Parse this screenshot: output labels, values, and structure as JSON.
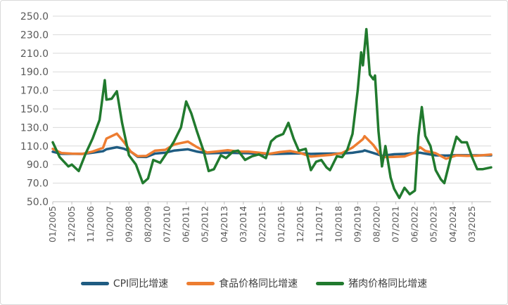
{
  "chart_data": {
    "type": "line",
    "title": "",
    "xlabel": "",
    "ylabel": "",
    "ylim": [
      50,
      250
    ],
    "y_ticks": [
      "50.0",
      "70.0",
      "90.0",
      "110.0",
      "130.0",
      "150.0",
      "170.0",
      "190.0",
      "210.0",
      "230.0",
      "250.0"
    ],
    "x_range": [
      "2005-01",
      "2026-02"
    ],
    "x_tick_labels": [
      "01/2005",
      "12/2005",
      "11/2006",
      "10/2007",
      "09/2008",
      "08/2009",
      "07/2010",
      "06/2011",
      "05/2012",
      "04/2013",
      "03/2014",
      "02/2015",
      "01/2016",
      "12/2016",
      "11/2017",
      "10/2018",
      "09/2019",
      "08/2020",
      "07/2021",
      "06/2022",
      "05/2023",
      "04/2024",
      "03/2025"
    ],
    "grid": "horizontal",
    "legend_position": "bottom",
    "series": [
      {
        "name": "CPI同比增速",
        "color": "#1f5c82",
        "points": [
          [
            "2005-01",
            103.9
          ],
          [
            "2005-06",
            101.6
          ],
          [
            "2005-12",
            101.6
          ],
          [
            "2006-06",
            101.5
          ],
          [
            "2006-12",
            102.8
          ],
          [
            "2007-06",
            104.4
          ],
          [
            "2007-08",
            106.5
          ],
          [
            "2008-02",
            108.7
          ],
          [
            "2008-06",
            107.1
          ],
          [
            "2008-10",
            104.0
          ],
          [
            "2009-02",
            98.4
          ],
          [
            "2009-07",
            98.2
          ],
          [
            "2009-12",
            101.9
          ],
          [
            "2010-06",
            102.9
          ],
          [
            "2010-11",
            105.1
          ],
          [
            "2011-07",
            106.5
          ],
          [
            "2011-12",
            104.1
          ],
          [
            "2012-06",
            102.2
          ],
          [
            "2012-12",
            102.5
          ],
          [
            "2013-06",
            102.7
          ],
          [
            "2013-12",
            102.5
          ],
          [
            "2014-06",
            102.3
          ],
          [
            "2014-12",
            101.5
          ],
          [
            "2015-06",
            101.4
          ],
          [
            "2015-12",
            101.6
          ],
          [
            "2016-06",
            101.9
          ],
          [
            "2016-12",
            102.1
          ],
          [
            "2017-06",
            101.5
          ],
          [
            "2017-12",
            101.8
          ],
          [
            "2018-06",
            101.9
          ],
          [
            "2018-12",
            101.9
          ],
          [
            "2019-06",
            102.7
          ],
          [
            "2019-12",
            104.5
          ],
          [
            "2020-01",
            105.4
          ],
          [
            "2020-06",
            102.5
          ],
          [
            "2020-11",
            99.5
          ],
          [
            "2021-06",
            101.1
          ],
          [
            "2021-12",
            101.5
          ],
          [
            "2022-06",
            102.5
          ],
          [
            "2022-09",
            102.8
          ],
          [
            "2022-12",
            101.8
          ],
          [
            "2023-06",
            100.0
          ],
          [
            "2023-12",
            99.7
          ],
          [
            "2024-06",
            100.2
          ],
          [
            "2024-12",
            100.1
          ],
          [
            "2025-06",
            100.0
          ],
          [
            "2026-02",
            100.0
          ]
        ]
      },
      {
        "name": "食品价格同比增速",
        "color": "#ed7d31",
        "points": [
          [
            "2005-01",
            107.0
          ],
          [
            "2005-06",
            102.5
          ],
          [
            "2005-12",
            101.8
          ],
          [
            "2006-06",
            101.5
          ],
          [
            "2006-12",
            104.0
          ],
          [
            "2007-06",
            108.0
          ],
          [
            "2007-08",
            118.0
          ],
          [
            "2008-02",
            123.3
          ],
          [
            "2008-06",
            114.4
          ],
          [
            "2008-10",
            104.0
          ],
          [
            "2009-02",
            99.0
          ],
          [
            "2009-07",
            99.3
          ],
          [
            "2009-12",
            105.0
          ],
          [
            "2010-06",
            106.0
          ],
          [
            "2010-11",
            111.7
          ],
          [
            "2011-07",
            114.8
          ],
          [
            "2011-12",
            109.1
          ],
          [
            "2012-06",
            103.0
          ],
          [
            "2012-12",
            104.2
          ],
          [
            "2013-06",
            105.5
          ],
          [
            "2013-12",
            104.1
          ],
          [
            "2014-06",
            104.0
          ],
          [
            "2014-12",
            102.9
          ],
          [
            "2015-06",
            101.6
          ],
          [
            "2015-12",
            103.5
          ],
          [
            "2016-06",
            104.6
          ],
          [
            "2016-12",
            102.4
          ],
          [
            "2017-06",
            98.6
          ],
          [
            "2017-12",
            99.6
          ],
          [
            "2018-06",
            100.6
          ],
          [
            "2018-12",
            102.5
          ],
          [
            "2019-06",
            108.3
          ],
          [
            "2019-12",
            117.4
          ],
          [
            "2020-01",
            120.6
          ],
          [
            "2020-06",
            111.1
          ],
          [
            "2020-11",
            98.0
          ],
          [
            "2021-06",
            98.3
          ],
          [
            "2021-12",
            98.8
          ],
          [
            "2022-06",
            102.9
          ],
          [
            "2022-09",
            108.8
          ],
          [
            "2022-12",
            104.8
          ],
          [
            "2023-06",
            102.3
          ],
          [
            "2023-12",
            96.3
          ],
          [
            "2024-06",
            99.9
          ],
          [
            "2024-12",
            99.4
          ],
          [
            "2025-06",
            99.6
          ],
          [
            "2026-02",
            100.8
          ]
        ]
      },
      {
        "name": "猪肉价格同比增速",
        "color": "#217a2e",
        "points": [
          [
            "2005-01",
            114.0
          ],
          [
            "2005-05",
            98.0
          ],
          [
            "2005-10",
            88.0
          ],
          [
            "2005-12",
            90.0
          ],
          [
            "2006-04",
            83.0
          ],
          [
            "2006-08",
            102.0
          ],
          [
            "2006-12",
            118.0
          ],
          [
            "2007-04",
            138.0
          ],
          [
            "2007-07",
            181.0
          ],
          [
            "2007-08",
            160.0
          ],
          [
            "2007-11",
            161.0
          ],
          [
            "2008-02",
            169.0
          ],
          [
            "2008-05",
            135.0
          ],
          [
            "2008-09",
            100.0
          ],
          [
            "2009-01",
            90.0
          ],
          [
            "2009-05",
            70.0
          ],
          [
            "2009-08",
            75.0
          ],
          [
            "2009-11",
            95.0
          ],
          [
            "2010-03",
            92.0
          ],
          [
            "2010-07",
            103.0
          ],
          [
            "2010-11",
            115.0
          ],
          [
            "2011-03",
            130.0
          ],
          [
            "2011-06",
            158.0
          ],
          [
            "2011-09",
            145.0
          ],
          [
            "2011-12",
            127.0
          ],
          [
            "2012-04",
            105.0
          ],
          [
            "2012-07",
            83.0
          ],
          [
            "2012-10",
            85.0
          ],
          [
            "2013-02",
            100.0
          ],
          [
            "2013-05",
            97.0
          ],
          [
            "2013-09",
            104.0
          ],
          [
            "2013-12",
            105.0
          ],
          [
            "2014-04",
            95.0
          ],
          [
            "2014-08",
            99.0
          ],
          [
            "2014-12",
            101.0
          ],
          [
            "2015-04",
            97.0
          ],
          [
            "2015-07",
            115.0
          ],
          [
            "2015-10",
            120.0
          ],
          [
            "2016-02",
            123.0
          ],
          [
            "2016-05",
            135.0
          ],
          [
            "2016-08",
            118.0
          ],
          [
            "2016-11",
            105.0
          ],
          [
            "2017-03",
            107.0
          ],
          [
            "2017-06",
            84.0
          ],
          [
            "2017-09",
            93.0
          ],
          [
            "2017-12",
            95.0
          ],
          [
            "2018-03",
            87.0
          ],
          [
            "2018-05",
            84.0
          ],
          [
            "2018-09",
            99.0
          ],
          [
            "2018-12",
            98.0
          ],
          [
            "2019-03",
            106.0
          ],
          [
            "2019-06",
            123.0
          ],
          [
            "2019-09",
            170.0
          ],
          [
            "2019-11",
            211.0
          ],
          [
            "2019-12",
            197.0
          ],
          [
            "2020-02",
            236.0
          ],
          [
            "2020-04",
            187.0
          ],
          [
            "2020-06",
            182.0
          ],
          [
            "2020-07",
            186.0
          ],
          [
            "2020-09",
            126.0
          ],
          [
            "2020-11",
            88.0
          ],
          [
            "2021-01",
            110.0
          ],
          [
            "2021-04",
            76.0
          ],
          [
            "2021-06",
            64.0
          ],
          [
            "2021-09",
            54.0
          ],
          [
            "2021-12",
            65.0
          ],
          [
            "2022-03",
            58.0
          ],
          [
            "2022-06",
            62.0
          ],
          [
            "2022-08",
            120.0
          ],
          [
            "2022-10",
            152.0
          ],
          [
            "2022-12",
            121.0
          ],
          [
            "2023-03",
            110.0
          ],
          [
            "2023-06",
            84.0
          ],
          [
            "2023-09",
            74.0
          ],
          [
            "2023-11",
            70.0
          ],
          [
            "2024-03",
            100.0
          ],
          [
            "2024-06",
            120.0
          ],
          [
            "2024-09",
            114.0
          ],
          [
            "2024-12",
            114.0
          ],
          [
            "2025-03",
            98.0
          ],
          [
            "2025-06",
            85.0
          ],
          [
            "2025-09",
            85.0
          ],
          [
            "2026-02",
            87.0
          ]
        ]
      }
    ]
  }
}
